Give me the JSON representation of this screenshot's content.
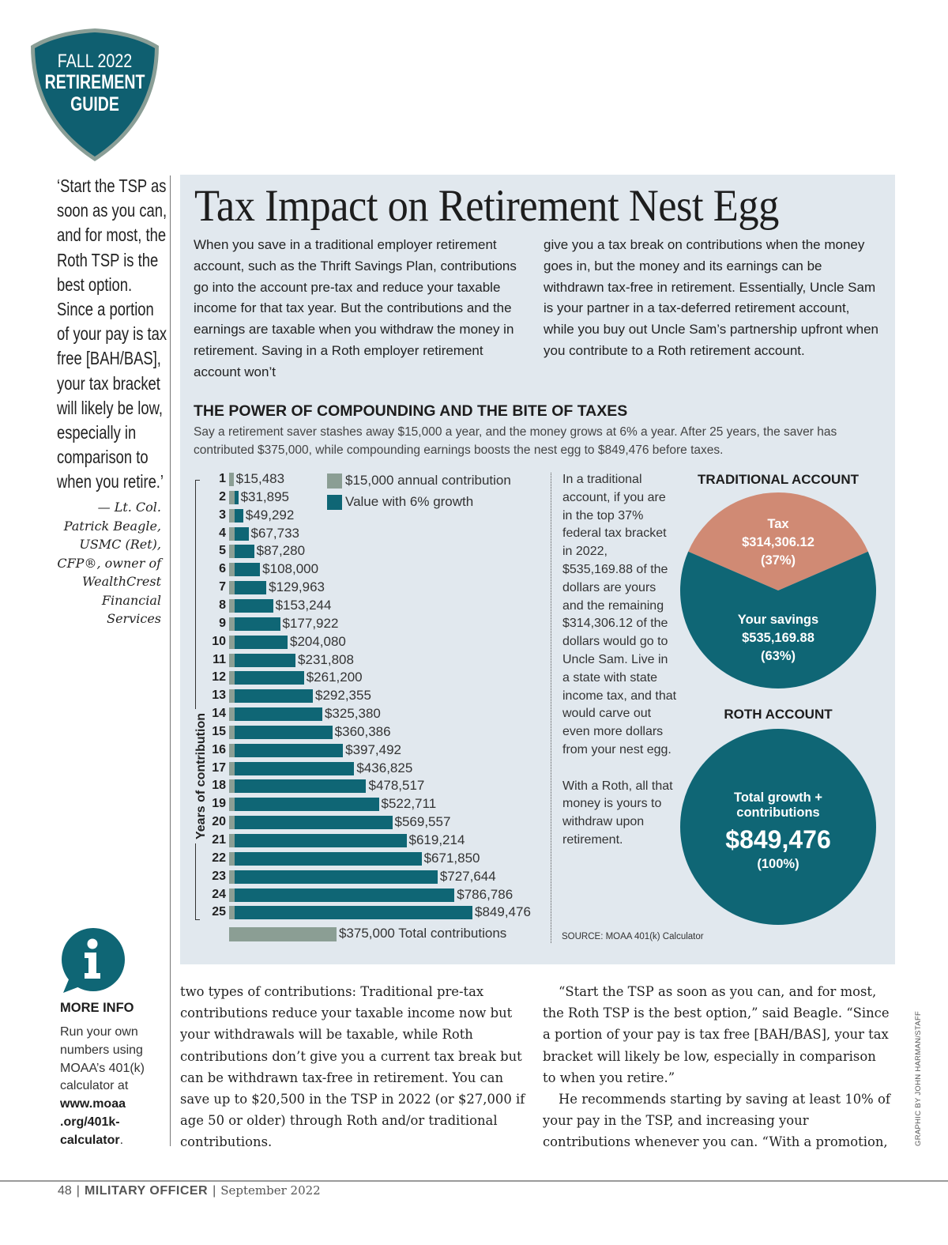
{
  "badge": {
    "line1": "FALL 2022",
    "line2": "RETIREMENT",
    "line3": "GUIDE",
    "color": "#0f5f70",
    "border_color": "#8a9e96"
  },
  "pull_quote": {
    "text": "‘Start the TSP as soon as you can, and for most, the Roth TSP is the best option. Since a portion of your pay is tax free [BAH/BAS], your tax bracket will likely be low, especially in comparison to when you retire.’",
    "attribution": "— Lt. Col. Patrick Beagle, USMC (Ret), CFP®, owner of WealthCrest Financial Services"
  },
  "infographic": {
    "title": "Tax Impact on Retirement Nest Egg",
    "intro_left": "When you save in a traditional employer retirement account, such as the Thrift Savings Plan, contributions go into the account pre-tax and reduce your taxable income for that tax year. But the contributions and the earnings are taxable when you withdraw the money in retirement. Saving in a Roth employer retirement account won’t",
    "intro_right": "give you a tax break on contributions when the money goes in, but the money and its earnings can be withdrawn tax-free in retirement. Essentially, Uncle Sam is your partner in a tax-deferred retirement account, while you buy out Uncle Sam’s partnership upfront when you contribute to a Roth retirement account.",
    "section_title": "THE POWER OF COMPOUNDING AND THE BITE OF TAXES",
    "section_subtitle": "Say a retirement saver stashes away $15,000 a year, and the money grows at 6% a year. After 25 years, the saver has contributed $375,000, while compounding earnings boosts the nest egg to $849,476 before taxes.",
    "side_text_1": "In a traditional account, if you are in the top 37% federal tax bracket in 2022, $535,169.88 of the dollars are yours and the remaining $314,306.12 of the dollars would go to Uncle Sam. Live in a state with state income tax, and that would carve out even more dollars from your nest egg.",
    "side_text_2": "With a Roth, all that money is yours to withdraw upon retirement.",
    "source": "SOURCE: MOAA 401(k) Calculator",
    "colors": {
      "panel_bg": "#e1e8ee",
      "teal": "#0f6675",
      "grey": "#8b9e94",
      "tax": "#d08a74"
    }
  },
  "chart_data": [
    {
      "type": "bar",
      "orientation": "horizontal",
      "title": "THE POWER OF COMPOUNDING AND THE BITE OF TAXES",
      "ylabel": "Years of contribution",
      "xlabel": "",
      "categories": [
        "1",
        "2",
        "3",
        "4",
        "5",
        "6",
        "7",
        "8",
        "9",
        "10",
        "11",
        "12",
        "13",
        "14",
        "15",
        "16",
        "17",
        "18",
        "19",
        "20",
        "21",
        "22",
        "23",
        "24",
        "25"
      ],
      "series": [
        {
          "name": "$15,000 annual contribution",
          "values": [
            15000,
            15000,
            15000,
            15000,
            15000,
            15000,
            15000,
            15000,
            15000,
            15000,
            15000,
            15000,
            15000,
            15000,
            15000,
            15000,
            15000,
            15000,
            15000,
            15000,
            15000,
            15000,
            15000,
            15000,
            15000
          ]
        },
        {
          "name": "Value with 6% growth",
          "values": [
            15483,
            31895,
            49292,
            67733,
            87280,
            108000,
            129963,
            153244,
            177922,
            204080,
            231808,
            261200,
            292355,
            325380,
            360386,
            397492,
            436825,
            478517,
            522711,
            569557,
            619214,
            671850,
            727644,
            786786,
            849476
          ]
        }
      ],
      "data_labels": [
        "$15,483",
        "$31,895",
        "$49,292",
        "$67,733",
        "$87,280",
        "$108,000",
        "$129,963",
        "$153,244",
        "$177,922",
        "$204,080",
        "$231,808",
        "$261,200",
        "$292,355",
        "$325,380",
        "$360,386",
        "$397,492",
        "$436,825",
        "$478,517",
        "$522,711",
        "$569,557",
        "$619,214",
        "$671,850",
        "$727,644",
        "$786,786",
        "$849,476"
      ],
      "total_contributions": {
        "value": 375000,
        "label": "$375,000 Total contributions"
      },
      "legend": [
        "$15,000 annual contribution",
        "Value with 6% growth"
      ],
      "legend_position": "top-right",
      "xlim": [
        0,
        849476
      ],
      "grid": false
    },
    {
      "type": "pie",
      "title": "TRADITIONAL ACCOUNT",
      "slices": [
        {
          "name": "Tax",
          "value": 314306.12,
          "percent": 37,
          "amount_label": "$314,306.12",
          "percent_label": "(37%)",
          "color": "#d08a74"
        },
        {
          "name": "Your savings",
          "value": 535169.88,
          "percent": 63,
          "amount_label": "$535,169.88",
          "percent_label": "(63%)",
          "color": "#0f6675"
        }
      ]
    },
    {
      "type": "pie",
      "title": "ROTH ACCOUNT",
      "slices": [
        {
          "name": "Total growth + contributions",
          "value": 849476,
          "percent": 100,
          "amount_label": "$849,476",
          "percent_label": "(100%)",
          "color": "#0f6675"
        }
      ]
    }
  ],
  "more_info": {
    "title": "MORE INFO",
    "text": "Run your own numbers using MOAA’s 401(k) calculator at",
    "link": "www.moaa .org/401k-calculator",
    "after": "."
  },
  "body": {
    "left": "two types of contributions: Traditional pre-tax contributions reduce your taxable income now but your withdrawals will be taxable, while Roth contributions don’t give you a current tax break but can be withdrawn tax-free in retirement. You can save up to $20,500 in the TSP in 2022 (or $27,000 if age 50 or older) through Roth and/or traditional contributions.",
    "right_p1": "“Start the TSP as soon as you can, and for most, the Roth TSP is the best option,” said Beagle. “Since a portion of your pay is tax free [BAH/BAS], your tax bracket will likely be low, especially in comparison to when you retire.”",
    "right_p2": "He recommends starting by saving at least 10% of your pay in the TSP, and increasing your contributions whenever you can. “With a promotion,"
  },
  "credit": "GRAPHIC BY JOHN HARMAN/STAFF",
  "footer": {
    "page": "48",
    "magazine": "MILITARY OFFICER",
    "date": "September 2022"
  }
}
